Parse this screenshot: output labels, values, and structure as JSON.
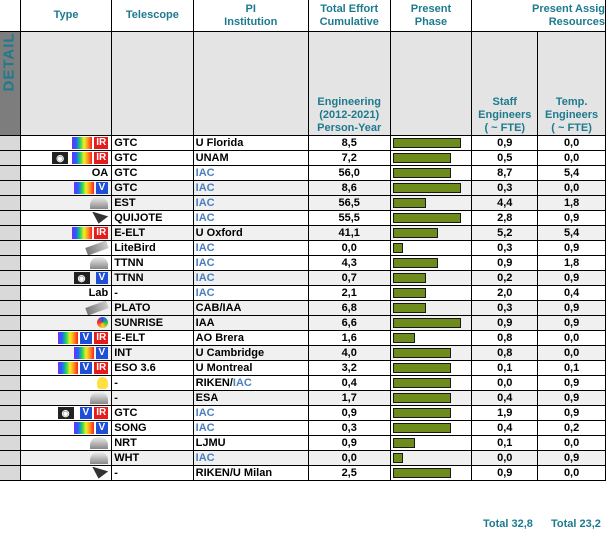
{
  "headers": {
    "type": "Type",
    "telescope": "Telescope",
    "pi1": "PI",
    "pi2": "Institution",
    "effort1": "Total Effort",
    "effort2": "Cumulative",
    "phase1": "Present",
    "phase2": "Phase",
    "res1": "Present Assig",
    "res2": "Resources"
  },
  "details": {
    "label": "DETAILS",
    "eng1": "Engineering",
    "eng2": "(2012-2021)",
    "eng3": "Person-Year",
    "staff1": "Staff",
    "staff2": "Engineers",
    "staff3": "( ~ FTE)",
    "temp1": "Temp.",
    "temp2": "Engineers",
    "temp3": "( ~ FTE)"
  },
  "rows": [
    {
      "icons": [
        "rainbow-icon",
        "ir-icon"
      ],
      "type": "",
      "tel": "GTC",
      "pi": "U Florida",
      "eff": "8,5",
      "phase": 0.95,
      "staff": "0,9",
      "temp": "0,0",
      "gray": false
    },
    {
      "icons": [
        "camera-icon",
        "rainbow-icon",
        "ir-icon"
      ],
      "type": "",
      "tel": "GTC",
      "pi": "UNAM",
      "eff": "7,2",
      "phase": 0.81,
      "staff": "0,5",
      "temp": "0,0",
      "gray": false
    },
    {
      "icons": [],
      "type": "OA",
      "tel": "GTC",
      "pi": "IAC",
      "eff": "56,0",
      "phase": 0.81,
      "staff": "8,7",
      "temp": "5,4",
      "gray": false
    },
    {
      "icons": [
        "rainbow-icon",
        "v-icon"
      ],
      "type": "",
      "tel": "GTC",
      "pi": "IAC",
      "eff": "8,6",
      "phase": 0.95,
      "staff": "0,3",
      "temp": "0,0",
      "gray": true
    },
    {
      "icons": [
        "dome-icon"
      ],
      "type": "",
      "tel": "EST",
      "pi": "IAC",
      "eff": "56,5",
      "phase": 0.46,
      "staff": "4,4",
      "temp": "1,8",
      "gray": true
    },
    {
      "icons": [
        "dish-icon"
      ],
      "type": "",
      "tel": "QUIJOTE",
      "pi": "IAC",
      "eff": "55,5",
      "phase": 0.95,
      "staff": "2,8",
      "temp": "0,9",
      "gray": false
    },
    {
      "icons": [
        "rainbow-icon",
        "ir-icon"
      ],
      "type": "",
      "tel": "E-ELT",
      "pi": "U Oxford",
      "eff": "41,1",
      "phase": 0.62,
      "staff": "5,2",
      "temp": "5,4",
      "gray": true
    },
    {
      "icons": [
        "satellite-icon"
      ],
      "type": "",
      "tel": "LiteBird",
      "pi": "IAC",
      "eff": "0,0",
      "phase": 0.14,
      "staff": "0,3",
      "temp": "0,9",
      "gray": false
    },
    {
      "icons": [
        "dome-icon"
      ],
      "type": "",
      "tel": "TTNN",
      "pi": "IAC",
      "eff": "4,3",
      "phase": 0.62,
      "staff": "0,9",
      "temp": "1,8",
      "gray": false
    },
    {
      "icons": [
        "camera-icon",
        "v-icon"
      ],
      "type": "",
      "tel": "TTNN",
      "pi": "IAC",
      "eff": "0,7",
      "phase": 0.46,
      "staff": "0,2",
      "temp": "0,9",
      "gray": true
    },
    {
      "icons": [],
      "type": "Lab",
      "tel": "-",
      "pi": "IAC",
      "eff": "2,1",
      "phase": 0.46,
      "staff": "2,0",
      "temp": "0,4",
      "gray": false
    },
    {
      "icons": [
        "satellite-icon"
      ],
      "type": "",
      "tel": "PLATO",
      "pi": "CAB/IAA",
      "eff": "6,8",
      "phase": 0.46,
      "staff": "0,3",
      "temp": "0,9",
      "gray": true
    },
    {
      "icons": [
        "ball-icon"
      ],
      "type": "",
      "tel": "SUNRISE",
      "pi": "IAA",
      "eff": "6,6",
      "phase": 0.95,
      "staff": "0,9",
      "temp": "0,9",
      "gray": true
    },
    {
      "icons": [
        "rainbow-icon",
        "v-icon",
        "ir-icon"
      ],
      "type": "",
      "tel": "E-ELT",
      "pi": "AO Brera",
      "eff": "1,6",
      "phase": 0.3,
      "staff": "0,8",
      "temp": "0,0",
      "gray": false
    },
    {
      "icons": [
        "rainbow-icon",
        "v-icon"
      ],
      "type": "",
      "tel": "INT",
      "pi": "U Cambridge",
      "eff": "4,0",
      "phase": 0.81,
      "staff": "0,8",
      "temp": "0,0",
      "gray": true
    },
    {
      "icons": [
        "rainbow-icon",
        "v-icon",
        "ir-icon"
      ],
      "type": "",
      "tel": "ESO 3.6",
      "pi": "U Montreal",
      "eff": "3,2",
      "phase": 0.81,
      "staff": "0,1",
      "temp": "0,1",
      "gray": false
    },
    {
      "icons": [
        "bulb-icon"
      ],
      "type": "",
      "tel": "-",
      "pi": "RIKEN/IAC",
      "eff": "0,4",
      "phase": 0.81,
      "staff": "0,0",
      "temp": "0,9",
      "gray": false
    },
    {
      "icons": [
        "dome-icon"
      ],
      "type": "",
      "tel": "-",
      "pi": "ESA",
      "eff": "1,7",
      "phase": 0.81,
      "staff": "0,4",
      "temp": "0,9",
      "gray": true
    },
    {
      "icons": [
        "camera-icon",
        "v-icon",
        "ir-icon"
      ],
      "type": "",
      "tel": "GTC",
      "pi": "IAC",
      "eff": "0,9",
      "phase": 0.81,
      "staff": "1,9",
      "temp": "0,9",
      "gray": false
    },
    {
      "icons": [
        "rainbow-icon",
        "v-icon"
      ],
      "type": "",
      "tel": "SONG",
      "pi": "IAC",
      "eff": "0,3",
      "phase": 0.81,
      "staff": "0,4",
      "temp": "0,2",
      "gray": false
    },
    {
      "icons": [
        "dome-icon"
      ],
      "type": "",
      "tel": "NRT",
      "pi": "LJMU",
      "eff": "0,9",
      "phase": 0.3,
      "staff": "0,1",
      "temp": "0,0",
      "gray": false
    },
    {
      "icons": [
        "dome-icon"
      ],
      "type": "",
      "tel": "WHT",
      "pi": "IAC",
      "eff": "0,0",
      "phase": 0.14,
      "staff": "0,0",
      "temp": "0,9",
      "gray": true
    },
    {
      "icons": [
        "dish-icon"
      ],
      "type": "",
      "tel": "-",
      "pi": "RIKEN/U Milan",
      "eff": "2,5",
      "phase": 0.81,
      "staff": "0,9",
      "temp": "0,0",
      "gray": false
    }
  ],
  "totals": {
    "staff": "Total 32,8",
    "temp": "Total 23,2"
  },
  "colors": {
    "header_text": "#1e7a8e",
    "iac_blue": "#4a7fc1",
    "phase_bar": "#6d8c1c",
    "details_bg": "#7d7d7d"
  }
}
